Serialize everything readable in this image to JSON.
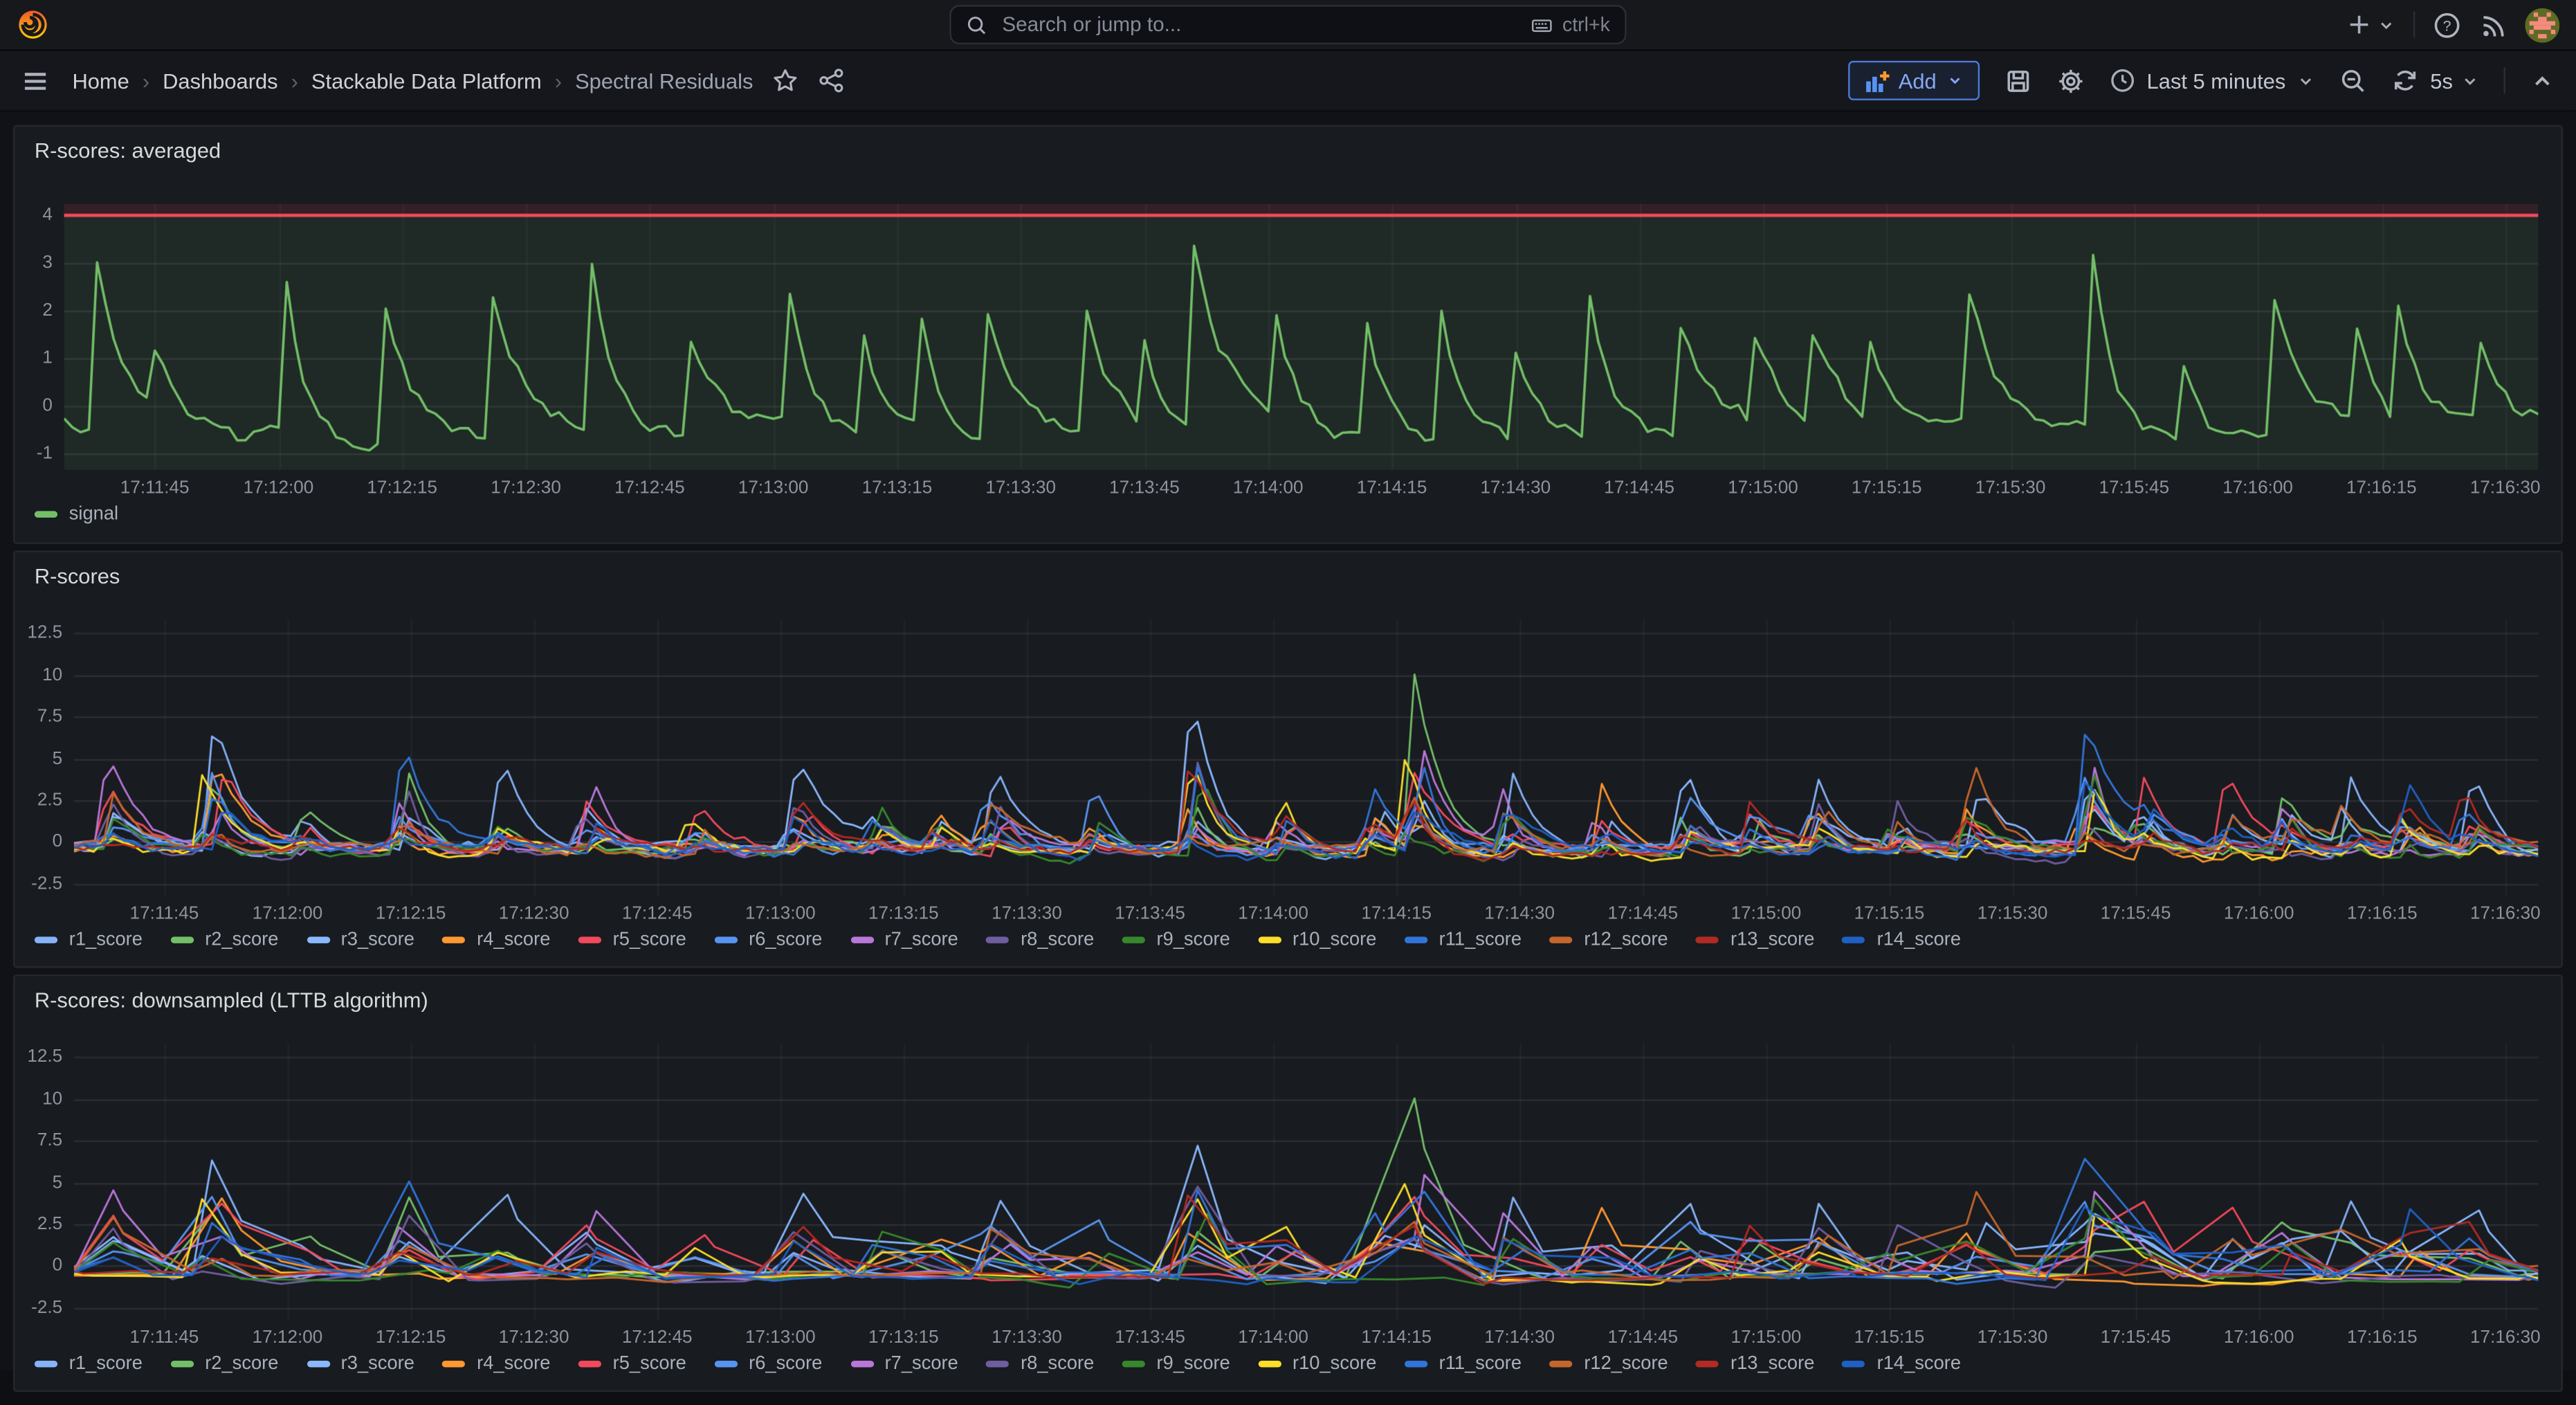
{
  "header": {
    "search": {
      "placeholder": "Search or jump to...",
      "shortcut": "ctrl+k"
    }
  },
  "toolbar": {
    "breadcrumbs": [
      "Home",
      "Dashboards",
      "Stackable Data Platform",
      "Spectral Residuals"
    ],
    "add_label": "Add",
    "time_range": "Last 5 minutes",
    "refresh_interval": "5s"
  },
  "colors": {
    "accent_blue": "#5794F2",
    "threshold_red": "#F2495C",
    "signal_green": "#73BF69"
  },
  "series_sets": {
    "signal": [
      {
        "name": "signal",
        "color": "#73BF69"
      }
    ],
    "scores": [
      {
        "name": "r1_score",
        "color": "#85B2F9"
      },
      {
        "name": "r2_score",
        "color": "#73BF69"
      },
      {
        "name": "r3_score",
        "color": "#8AB8FF"
      },
      {
        "name": "r4_score",
        "color": "#FF9830"
      },
      {
        "name": "r5_score",
        "color": "#F2495C"
      },
      {
        "name": "r6_score",
        "color": "#5794F2"
      },
      {
        "name": "r7_score",
        "color": "#B877D9"
      },
      {
        "name": "r8_score",
        "color": "#705DA0"
      },
      {
        "name": "r9_score",
        "color": "#37872D"
      },
      {
        "name": "r10_score",
        "color": "#FADE2A"
      },
      {
        "name": "r11_score",
        "color": "#3274D9"
      },
      {
        "name": "r12_score",
        "color": "#C4662D"
      },
      {
        "name": "r13_score",
        "color": "#B22A24"
      },
      {
        "name": "r14_score",
        "color": "#1F60C4"
      }
    ]
  },
  "spike_sets": {
    "avg": [
      [
        4,
        3.3
      ],
      [
        11,
        1.3
      ],
      [
        27,
        3.0
      ],
      [
        39,
        3.0
      ],
      [
        52,
        2.9
      ],
      [
        64,
        3.4
      ],
      [
        76,
        1.9
      ],
      [
        88,
        2.6
      ],
      [
        97,
        2.0
      ],
      [
        104,
        2.3
      ],
      [
        112,
        2.7
      ],
      [
        124,
        2.6
      ],
      [
        131,
        1.7
      ],
      [
        137,
        3.85
      ],
      [
        147,
        2.0
      ],
      [
        158,
        2.3
      ],
      [
        167,
        2.6
      ],
      [
        176,
        1.6
      ],
      [
        185,
        2.9
      ],
      [
        196,
        2.4
      ],
      [
        205,
        1.7
      ],
      [
        212,
        2.0
      ],
      [
        219,
        1.6
      ],
      [
        231,
        2.8
      ],
      [
        246,
        3.6
      ],
      [
        257,
        1.5
      ],
      [
        268,
        2.9
      ],
      [
        278,
        1.8
      ],
      [
        283,
        2.4
      ],
      [
        293,
        1.6
      ]
    ],
    "multi": [
      [
        4,
        6,
        6
      ],
      [
        17,
        8.5,
        0
      ],
      [
        28,
        2.8,
        1
      ],
      [
        40,
        7,
        10
      ],
      [
        52,
        5.5,
        0
      ],
      [
        63,
        5,
        6
      ],
      [
        76,
        3,
        4
      ],
      [
        88,
        5.5,
        2
      ],
      [
        98,
        3,
        8
      ],
      [
        105,
        2.6,
        3
      ],
      [
        112,
        5.5,
        0
      ],
      [
        124,
        4,
        5
      ],
      [
        136,
        10,
        2
      ],
      [
        147,
        3.5,
        9
      ],
      [
        158,
        4,
        10
      ],
      [
        163,
        11.3,
        1
      ],
      [
        175,
        5.5,
        0
      ],
      [
        186,
        4,
        3
      ],
      [
        196,
        5,
        2
      ],
      [
        204,
        3,
        12
      ],
      [
        212,
        4.5,
        0
      ],
      [
        222,
        3,
        7
      ],
      [
        231,
        6,
        11
      ],
      [
        245,
        8,
        10
      ],
      [
        252,
        4,
        4
      ],
      [
        262,
        5,
        4
      ],
      [
        269,
        4,
        1
      ],
      [
        277,
        5,
        0
      ],
      [
        284,
        4.5,
        13
      ],
      [
        292,
        5,
        2
      ]
    ]
  },
  "chart_data": [
    {
      "panel": "p1",
      "type": "line",
      "title": "R-scores: averaged",
      "legend_position": "bottom",
      "grid": true,
      "x_labels": [
        "17:11:45",
        "17:12:00",
        "17:12:15",
        "17:12:30",
        "17:12:45",
        "17:13:00",
        "17:13:15",
        "17:13:30",
        "17:13:45",
        "17:14:00",
        "17:14:15",
        "17:14:30",
        "17:14:45",
        "17:15:00",
        "17:15:15",
        "17:15:30",
        "17:15:45",
        "17:16:00",
        "17:16:15",
        "17:16:30"
      ],
      "x_tick_start": 11,
      "x_tick_step": 15,
      "t_span": 300,
      "y_ticks": [
        {
          "label": "4",
          "v": 4
        },
        {
          "label": "3",
          "v": 3
        },
        {
          "label": "2",
          "v": 2
        },
        {
          "label": "1",
          "v": 1
        },
        {
          "label": "0",
          "v": 0
        },
        {
          "label": "-1",
          "v": -1
        }
      ],
      "ylim": [
        -1.35,
        4.25
      ],
      "series_set": "signal",
      "spike_set": "avg",
      "threshold": {
        "value": 4,
        "line_color": "#F2495C",
        "above_fill": "rgba(242,73,92,0.12)",
        "below_fill": "rgba(115,191,105,0.09)"
      },
      "baseline": {
        "level": -0.25,
        "noise": 0.18,
        "walk": 0.22
      },
      "dt": 1.0,
      "seed": 3
    },
    {
      "panel": "p2",
      "type": "line",
      "title": "R-scores",
      "legend_position": "bottom",
      "grid": true,
      "x_labels": [
        "17:11:45",
        "17:12:00",
        "17:12:15",
        "17:12:30",
        "17:12:45",
        "17:13:00",
        "17:13:15",
        "17:13:30",
        "17:13:45",
        "17:14:00",
        "17:14:15",
        "17:14:30",
        "17:14:45",
        "17:15:00",
        "17:15:15",
        "17:15:30",
        "17:15:45",
        "17:16:00",
        "17:16:15",
        "17:16:30"
      ],
      "x_tick_start": 11,
      "x_tick_step": 15,
      "t_span": 300,
      "y_ticks": [
        {
          "label": "12.5",
          "v": 12.5
        },
        {
          "label": "10",
          "v": 10
        },
        {
          "label": "7.5",
          "v": 7.5
        },
        {
          "label": "5",
          "v": 5
        },
        {
          "label": "2.5",
          "v": 2.5
        },
        {
          "label": "0",
          "v": 0
        },
        {
          "label": "-2.5",
          "v": -2.5
        }
      ],
      "ylim": [
        -3.3,
        13.3
      ],
      "series_set": "scores",
      "spike_set": "multi",
      "baseline": {
        "level": -0.35,
        "noise": 0.3,
        "walk": 0.3
      },
      "dt": 1.2,
      "seed": 11
    },
    {
      "panel": "p3",
      "type": "line",
      "title": "R-scores: downsampled (LTTB algorithm)",
      "legend_position": "bottom",
      "grid": true,
      "x_labels": [
        "17:11:45",
        "17:12:00",
        "17:12:15",
        "17:12:30",
        "17:12:45",
        "17:13:00",
        "17:13:15",
        "17:13:30",
        "17:13:45",
        "17:14:00",
        "17:14:15",
        "17:14:30",
        "17:14:45",
        "17:15:00",
        "17:15:15",
        "17:15:30",
        "17:15:45",
        "17:16:00",
        "17:16:15",
        "17:16:30"
      ],
      "x_tick_start": 11,
      "x_tick_step": 15,
      "t_span": 300,
      "y_ticks": [
        {
          "label": "12.5",
          "v": 12.5
        },
        {
          "label": "10",
          "v": 10
        },
        {
          "label": "7.5",
          "v": 7.5
        },
        {
          "label": "5",
          "v": 5
        },
        {
          "label": "2.5",
          "v": 2.5
        },
        {
          "label": "0",
          "v": 0
        },
        {
          "label": "-2.5",
          "v": -2.5
        }
      ],
      "ylim": [
        -3.3,
        13.3
      ],
      "series_set": "scores",
      "spike_set": "multi",
      "baseline": {
        "level": -0.35,
        "noise": 0.3,
        "walk": 0.3
      },
      "dt": 1.2,
      "downsample": 4,
      "seed": 11
    }
  ]
}
